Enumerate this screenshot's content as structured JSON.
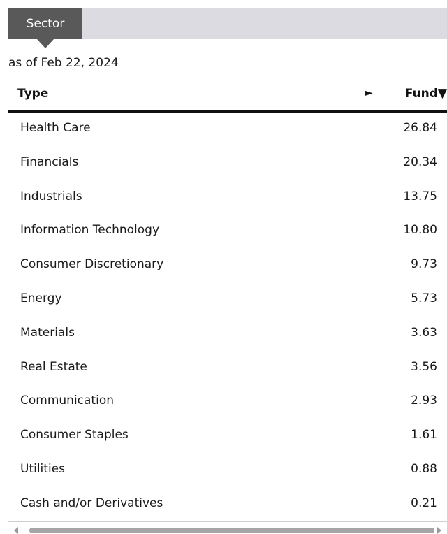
{
  "tabs": {
    "active_label": "Sector"
  },
  "as_of": "as of Feb 22, 2024",
  "table": {
    "col_type": "Type",
    "expand_glyph": "►",
    "col_fund": "Fund",
    "sort_glyph": "▼",
    "rows": [
      {
        "type": "Health Care",
        "fund": "26.84"
      },
      {
        "type": "Financials",
        "fund": "20.34"
      },
      {
        "type": "Industrials",
        "fund": "13.75"
      },
      {
        "type": "Information Technology",
        "fund": "10.80"
      },
      {
        "type": "Consumer Discretionary",
        "fund": "9.73"
      },
      {
        "type": "Energy",
        "fund": "5.73"
      },
      {
        "type": "Materials",
        "fund": "3.63"
      },
      {
        "type": "Real Estate",
        "fund": "3.56"
      },
      {
        "type": "Communication",
        "fund": "2.93"
      },
      {
        "type": "Consumer Staples",
        "fund": "1.61"
      },
      {
        "type": "Utilities",
        "fund": "0.88"
      },
      {
        "type": "Cash and/or Derivatives",
        "fund": "0.21"
      }
    ]
  },
  "colors": {
    "tab_active_bg": "#595959",
    "tab_bar_bg": "#dcdbe2",
    "header_rule": "#111111"
  }
}
